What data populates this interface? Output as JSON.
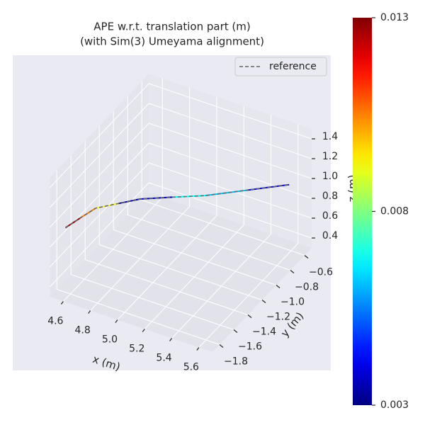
{
  "chart_data": {
    "type": "line3d",
    "title": [
      "APE w.r.t. translation part (m)",
      "(with Sim(3) Umeyama alignment)"
    ],
    "xlabel": "x (m)",
    "ylabel": "y (m)",
    "zlabel": "z (m)",
    "xlim": [
      4.5,
      5.7
    ],
    "ylim": [
      -1.9,
      -0.5
    ],
    "zlim": [
      0.3,
      1.5
    ],
    "xticks": [
      4.6,
      4.8,
      {
        "value": 5,
        "label": "5.0"
      },
      5.2,
      5.4,
      5.6
    ],
    "yticks": [
      {
        "value": -1.8,
        "label": "−1.8"
      },
      {
        "value": -1.6,
        "label": "−1.6"
      },
      {
        "value": -1.4,
        "label": "−1.4"
      },
      {
        "value": -1.2,
        "label": "−1.2"
      },
      {
        "value": -1,
        "label": "−1.0"
      },
      {
        "value": -0.8,
        "label": "−0.8"
      },
      {
        "value": -0.6,
        "label": "−0.6"
      }
    ],
    "zticks": [
      0.4,
      0.6,
      0.8,
      {
        "value": 1,
        "label": "1.0"
      },
      1.2,
      1.4
    ],
    "grid": true,
    "legend": "upper right",
    "series": [
      {
        "name": "reference",
        "color": "#666666",
        "dashed": true,
        "x": [
          4.59,
          4.62,
          4.654,
          4.73,
          4.8,
          4.97,
          5.145,
          5.35,
          5.555
        ],
        "y": [
          -1.85,
          -1.7,
          -1.547,
          -1.37,
          -1.2,
          -1.07,
          -0.94,
          -0.74,
          -0.54
        ],
        "z": [
          1.0,
          1.0,
          1.0,
          0.95,
          0.9,
          0.9,
          0.9,
          0.9,
          0.9
        ]
      }
    ],
    "error": {
      "colormap": "jet",
      "clim": [
        0.003,
        0.013
      ],
      "ticks": [
        0.003,
        0.008,
        0.013
      ],
      "values": [
        0.0128,
        0.0105,
        0.0092,
        0.0032,
        0.0035,
        0.0068,
        0.0062,
        0.0042,
        0.0036
      ]
    }
  }
}
